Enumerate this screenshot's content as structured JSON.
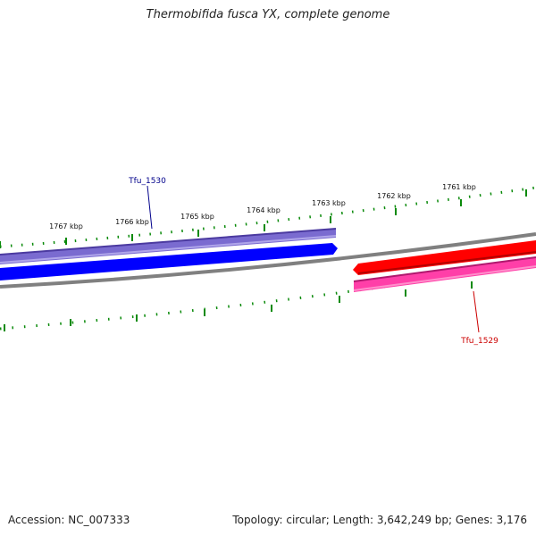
{
  "title": "Thermobifida fusca YX, complete genome",
  "footer": {
    "accession": "Accession: NC_007333",
    "summary": "Topology: circular; Length: 3,642,249 bp; Genes: 3,176"
  },
  "ruler": {
    "labels": [
      "1767 kbp",
      "1766 kbp",
      "1765 kbp",
      "1764 kbp",
      "1763 kbp",
      "1762 kbp",
      "1761 kbp"
    ]
  },
  "genes": [
    {
      "name": "Tfu_1530",
      "label_color": "#00008b",
      "cds_color": "#0000ff",
      "gene_color": "#7a6bd0"
    },
    {
      "name": "Tfu_1529",
      "label_color": "#cc0000",
      "cds_color": "#ff0000",
      "gene_color": "#ff3fa8"
    }
  ],
  "colors": {
    "tick": "#0a8a0a",
    "backbone": "#808080"
  }
}
